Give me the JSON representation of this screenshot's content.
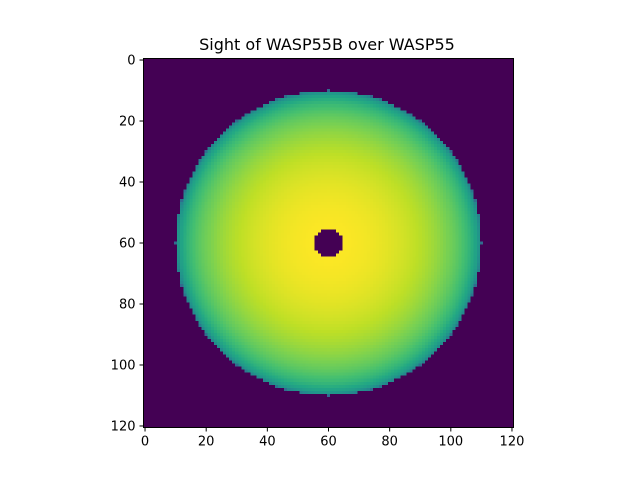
{
  "chart_data": {
    "type": "heatmap",
    "title": "Sight of WASP55B over WASP55",
    "xlabel": "",
    "ylabel": "",
    "grid": false,
    "image_size": [
      121,
      121
    ],
    "xlim": [
      -0.5,
      120.5
    ],
    "ylim": [
      120.5,
      -0.5
    ],
    "x_ticks": [
      0,
      20,
      40,
      60,
      80,
      100,
      120
    ],
    "y_ticks": [
      0,
      20,
      40,
      60,
      80,
      100,
      120
    ],
    "x_tick_labels": [
      "0",
      "20",
      "40",
      "60",
      "80",
      "100",
      "120"
    ],
    "y_tick_labels": [
      "0",
      "20",
      "40",
      "60",
      "80",
      "100",
      "120"
    ],
    "colormap": "viridis",
    "background_color": "#440154",
    "star": {
      "center": [
        60,
        60
      ],
      "radius": 50,
      "limb_darkening": true
    },
    "planet": {
      "center": [
        60,
        60
      ],
      "radius": 4.5
    }
  }
}
